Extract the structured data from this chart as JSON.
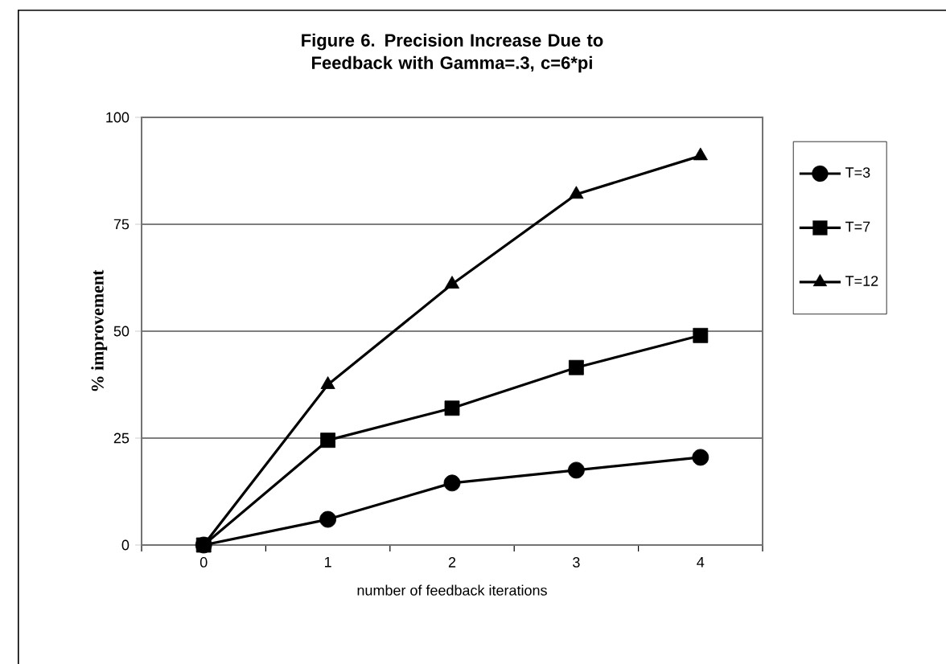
{
  "chart_data": {
    "type": "line",
    "title": "Figure 6. Precision Increase Due to Feedback with Gamma=.3, c=6*pi",
    "xlabel": "number of feedback iterations",
    "ylabel": "% improvement",
    "categories": [
      "0",
      "1",
      "2",
      "3",
      "4"
    ],
    "series": [
      {
        "name": "T=3",
        "color": "#000000",
        "marker": "circle",
        "values": [
          0,
          6,
          14.5,
          17.5,
          20.5
        ]
      },
      {
        "name": "T=7",
        "color": "#000000",
        "marker": "square",
        "values": [
          0,
          24.5,
          32,
          41.5,
          49
        ]
      },
      {
        "name": "T=12",
        "color": "#000000",
        "marker": "triangle",
        "values": [
          0,
          37.5,
          61,
          82,
          91
        ]
      }
    ],
    "ylim": [
      0,
      100
    ],
    "yticks": [
      0,
      25,
      50,
      75,
      100
    ],
    "grid": "y",
    "legend": "right",
    "line_style": "solid"
  }
}
